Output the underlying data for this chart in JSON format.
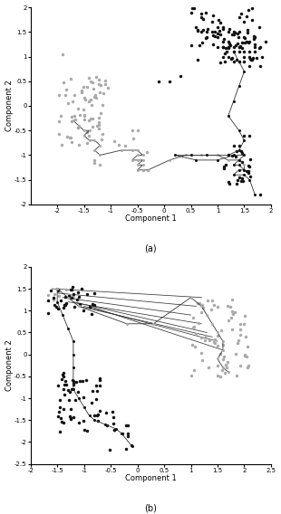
{
  "fig_width": 3.1,
  "fig_height": 5.68,
  "dpi": 100,
  "subplot_a": {
    "xlim": [
      -2.5,
      2.0
    ],
    "ylim": [
      -2.0,
      2.0
    ],
    "xlabel": "Component 1",
    "ylabel": "Component 2",
    "label": "(a)"
  },
  "subplot_b": {
    "xlim": [
      -2.0,
      2.5
    ],
    "ylim": [
      -2.5,
      2.0
    ],
    "xlabel": "Component 1",
    "ylabel": "Component 2",
    "label": "(b)"
  },
  "dark_color": "#111111",
  "gray_color": "#aaaaaa",
  "line_color": "#333333",
  "marker_size": 2.5,
  "line_width": 0.6,
  "font_size": 6,
  "label_font_size": 7
}
